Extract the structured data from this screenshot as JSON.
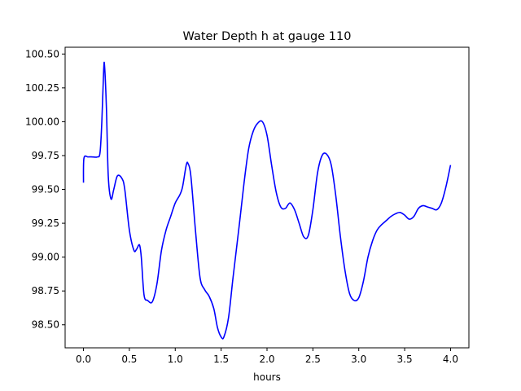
{
  "chart_data": {
    "type": "line",
    "title": "Water Depth h at gauge 110",
    "xlabel": "hours",
    "ylabel": "",
    "xlim": [
      -0.2,
      4.2
    ],
    "ylim": [
      98.33,
      100.55
    ],
    "xticks": [
      0.0,
      0.5,
      1.0,
      1.5,
      2.0,
      2.5,
      3.0,
      3.5,
      4.0
    ],
    "xtick_labels": [
      "0.0",
      "0.5",
      "1.0",
      "1.5",
      "2.0",
      "2.5",
      "3.0",
      "3.5",
      "4.0"
    ],
    "yticks": [
      98.5,
      98.75,
      99.0,
      99.25,
      99.5,
      99.75,
      100.0,
      100.25,
      100.5
    ],
    "ytick_labels": [
      "98.50",
      "98.75",
      "99.00",
      "99.25",
      "99.50",
      "99.75",
      "100.00",
      "100.25",
      "100.50"
    ],
    "grid": false,
    "series": [
      {
        "color": "#0000ff",
        "points": [
          [
            0.0,
            99.55
          ],
          [
            0.005,
            99.73
          ],
          [
            0.05,
            99.74
          ],
          [
            0.1,
            99.74
          ],
          [
            0.15,
            99.74
          ],
          [
            0.18,
            99.77
          ],
          [
            0.2,
            100.0
          ],
          [
            0.22,
            100.38
          ],
          [
            0.23,
            100.41
          ],
          [
            0.25,
            100.1
          ],
          [
            0.27,
            99.6
          ],
          [
            0.3,
            99.43
          ],
          [
            0.33,
            99.5
          ],
          [
            0.37,
            99.6
          ],
          [
            0.42,
            99.58
          ],
          [
            0.45,
            99.5
          ],
          [
            0.5,
            99.2
          ],
          [
            0.55,
            99.05
          ],
          [
            0.58,
            99.06
          ],
          [
            0.61,
            99.09
          ],
          [
            0.63,
            99.0
          ],
          [
            0.66,
            98.72
          ],
          [
            0.7,
            98.68
          ],
          [
            0.75,
            98.67
          ],
          [
            0.8,
            98.8
          ],
          [
            0.85,
            99.05
          ],
          [
            0.9,
            99.2
          ],
          [
            0.95,
            99.3
          ],
          [
            1.0,
            99.4
          ],
          [
            1.05,
            99.46
          ],
          [
            1.08,
            99.52
          ],
          [
            1.12,
            99.68
          ],
          [
            1.14,
            99.69
          ],
          [
            1.17,
            99.6
          ],
          [
            1.22,
            99.2
          ],
          [
            1.27,
            98.85
          ],
          [
            1.32,
            98.76
          ],
          [
            1.37,
            98.71
          ],
          [
            1.42,
            98.62
          ],
          [
            1.46,
            98.48
          ],
          [
            1.5,
            98.41
          ],
          [
            1.53,
            98.41
          ],
          [
            1.58,
            98.55
          ],
          [
            1.63,
            98.85
          ],
          [
            1.7,
            99.25
          ],
          [
            1.75,
            99.55
          ],
          [
            1.8,
            99.8
          ],
          [
            1.85,
            99.93
          ],
          [
            1.9,
            99.99
          ],
          [
            1.95,
            100.0
          ],
          [
            2.0,
            99.9
          ],
          [
            2.05,
            99.68
          ],
          [
            2.1,
            99.48
          ],
          [
            2.15,
            99.37
          ],
          [
            2.2,
            99.36
          ],
          [
            2.25,
            99.4
          ],
          [
            2.3,
            99.35
          ],
          [
            2.35,
            99.25
          ],
          [
            2.4,
            99.15
          ],
          [
            2.45,
            99.16
          ],
          [
            2.5,
            99.35
          ],
          [
            2.55,
            99.62
          ],
          [
            2.6,
            99.75
          ],
          [
            2.65,
            99.76
          ],
          [
            2.7,
            99.68
          ],
          [
            2.75,
            99.45
          ],
          [
            2.8,
            99.15
          ],
          [
            2.85,
            98.9
          ],
          [
            2.9,
            98.73
          ],
          [
            2.95,
            98.68
          ],
          [
            3.0,
            98.7
          ],
          [
            3.05,
            98.82
          ],
          [
            3.1,
            99.0
          ],
          [
            3.15,
            99.12
          ],
          [
            3.2,
            99.2
          ],
          [
            3.25,
            99.24
          ],
          [
            3.3,
            99.27
          ],
          [
            3.35,
            99.3
          ],
          [
            3.4,
            99.32
          ],
          [
            3.45,
            99.33
          ],
          [
            3.5,
            99.31
          ],
          [
            3.55,
            99.28
          ],
          [
            3.6,
            99.3
          ],
          [
            3.65,
            99.36
          ],
          [
            3.7,
            99.38
          ],
          [
            3.75,
            99.37
          ],
          [
            3.8,
            99.36
          ],
          [
            3.85,
            99.35
          ],
          [
            3.9,
            99.4
          ],
          [
            3.95,
            99.52
          ],
          [
            4.0,
            99.68
          ]
        ]
      }
    ]
  }
}
